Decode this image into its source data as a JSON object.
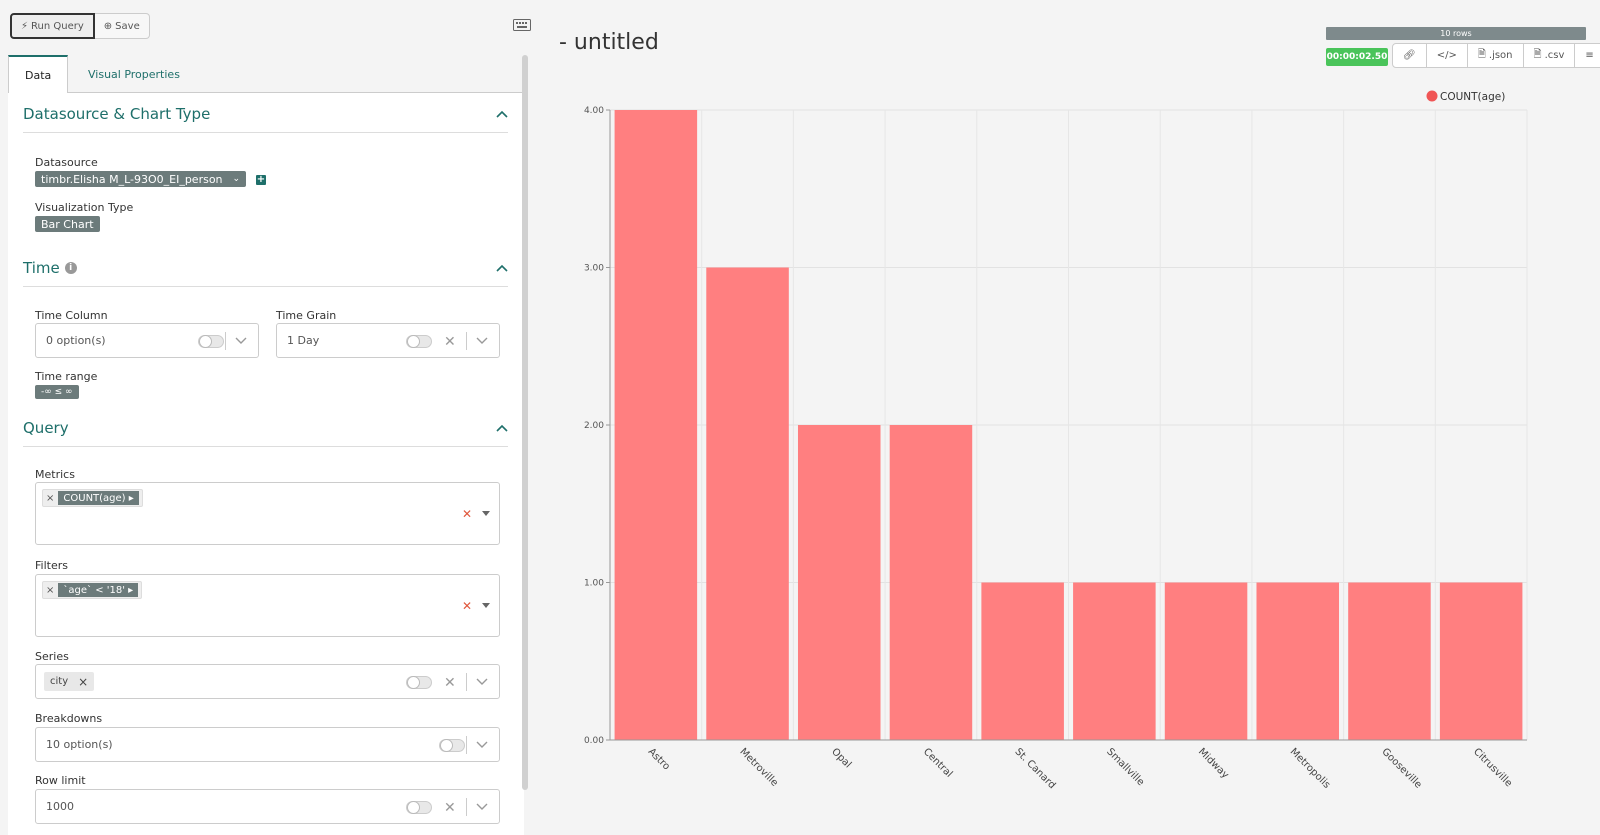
{
  "toolbar": {
    "run_query": "Run Query",
    "save": "Save"
  },
  "tabs": [
    {
      "label": "Data"
    },
    {
      "label": "Visual Properties"
    }
  ],
  "sections": {
    "datasource": {
      "title": "Datasource & Chart Type",
      "datasource_label": "Datasource",
      "datasource_value": "timbr.Elisha M_L-93O0_EI_person",
      "viz_label": "Visualization Type",
      "viz_value": "Bar Chart"
    },
    "time": {
      "title": "Time",
      "time_column_label": "Time Column",
      "time_column_placeholder": "0 option(s)",
      "time_grain_label": "Time Grain",
      "time_grain_value": "1 Day",
      "time_range_label": "Time range",
      "time_range_value": "-∞ ≤ ∞"
    },
    "query": {
      "title": "Query",
      "metrics_label": "Metrics",
      "metric_tag": "COUNT(age)",
      "filters_label": "Filters",
      "filter_tag": "`age` < '18'",
      "series_label": "Series",
      "series_tag": "city",
      "breakdowns_label": "Breakdowns",
      "breakdowns_placeholder": "10 option(s)",
      "row_limit_label": "Row limit",
      "row_limit_value": "1000"
    }
  },
  "header": {
    "title": "- untitled",
    "rows": "10 rows",
    "timer": "00:00:02.50",
    "json_label": ".json",
    "csv_label": ".csv"
  },
  "chart_data": {
    "type": "bar",
    "categories": [
      "Astro",
      "Metroville",
      "Opal",
      "Central",
      "St. Canard",
      "Smallville",
      "Midway",
      "Metropolis",
      "Gooseville",
      "Citrusville"
    ],
    "series": [
      {
        "name": "COUNT(age)",
        "values": [
          4,
          3,
          2,
          2,
          1,
          1,
          1,
          1,
          1,
          1
        ]
      }
    ],
    "yticks": [
      "0.00",
      "1.00",
      "2.00",
      "3.00",
      "4.00"
    ],
    "ylim": [
      0,
      4
    ],
    "grid": true,
    "legend_position": "top-right",
    "color": "#ff7f80",
    "legend_dot_color": "#f05555"
  },
  "colors": {
    "accent": "#1e6f6a",
    "success": "#4ac45a",
    "danger": "#e0573c"
  }
}
